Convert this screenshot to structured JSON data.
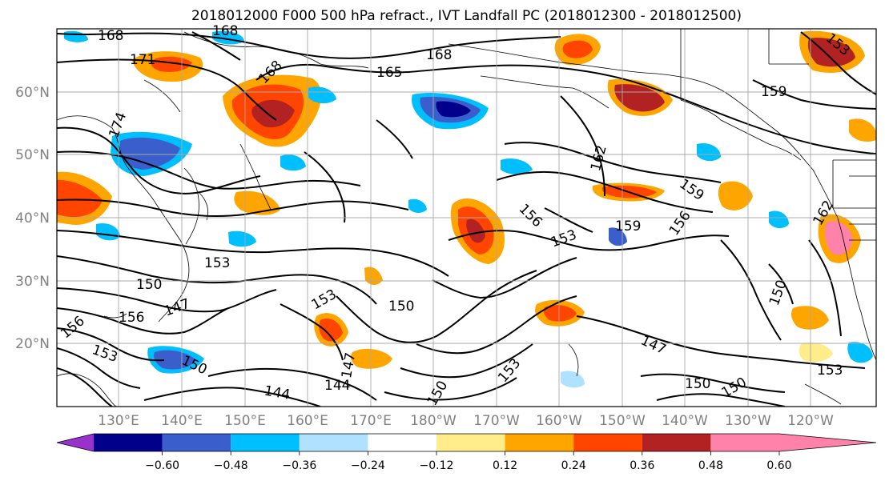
{
  "title": "2018012000 F000 500 hPa refract., IVT Landfall PC (2018012300 - 2018012500)",
  "map": {
    "lat_labels": [
      "60°N",
      "50°N",
      "40°N",
      "30°N",
      "20°N"
    ],
    "lon_labels": [
      "130°E",
      "140°E",
      "150°E",
      "160°E",
      "170°E",
      "180°W",
      "170°W",
      "160°W",
      "150°W",
      "140°W",
      "130°W",
      "120°W"
    ],
    "contour_labels": [
      "168",
      "168",
      "171",
      "168",
      "165",
      "168",
      "174",
      "159",
      "162",
      "159",
      "156",
      "159",
      "153",
      "156",
      "162",
      "153",
      "150",
      "153",
      "150",
      "150",
      "147",
      "156",
      "153",
      "156",
      "153",
      "147",
      "150",
      "147",
      "144",
      "144",
      "150",
      "150",
      "153",
      "150",
      "153"
    ]
  },
  "colorbar": {
    "tick_labels": [
      "−0.60",
      "−0.48",
      "−0.36",
      "−0.24",
      "−0.12",
      "0.12",
      "0.24",
      "0.36",
      "0.48",
      "0.60"
    ],
    "colors": [
      "#9932CC",
      "#00008B",
      "#3A5FCD",
      "#00BFFF",
      "#B0E2FF",
      "#FFFFFF",
      "#FFEC8B",
      "#FFA500",
      "#FF4500",
      "#B22222",
      "#FF82AB"
    ]
  }
}
